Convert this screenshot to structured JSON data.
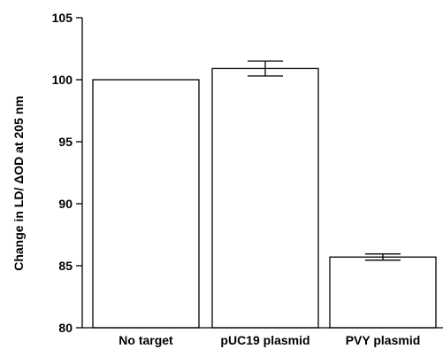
{
  "chart_data": {
    "type": "bar",
    "title": "",
    "xlabel": "",
    "ylabel": "Change in LD/ ΔOD at 205 nm",
    "categories": [
      "No target",
      "pUC19 plasmid",
      "PVY plasmid"
    ],
    "values": [
      100.0,
      100.9,
      85.7
    ],
    "errors": [
      0,
      0.6,
      0.25
    ],
    "ylim": [
      80,
      105
    ],
    "yticks": [
      80,
      85,
      90,
      95,
      100,
      105
    ],
    "grid": false,
    "legend": "none",
    "bar_fill": "#ffffff",
    "bar_stroke": "#000000"
  }
}
